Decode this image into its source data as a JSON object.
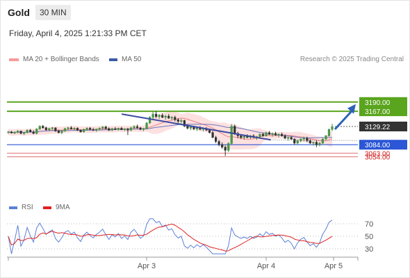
{
  "header": {
    "title": "Gold",
    "timeframe": "30 MIN",
    "datetime": "Friday, April 4, 2025 1:21:33 PM CET"
  },
  "legend": {
    "ma20_label": "MA 20 + Bollinger Bands",
    "ma50_label": "MA 50",
    "credit": "Research © 2025 Trading Central"
  },
  "rsi_legend": {
    "rsi_label": "RSI",
    "ma_label": "9MA"
  },
  "colors": {
    "up_candle": "#555555",
    "ma20": "#f08080",
    "bollinger_fill": "#fde0e0",
    "ma50": "#6a79c0",
    "trendline": "#3b4aa0",
    "resistance": "#5aa51e",
    "current_price": "#333333",
    "support_blue": "#2b56d6",
    "support_red": "#e07070",
    "arrow": "#2e62b8",
    "rsi": "#5b80d6",
    "rsi_ma": "#e02020"
  },
  "chart_data": {
    "type": "candlestick",
    "symbol": "Gold",
    "interval": "30 MIN",
    "x_labels": [
      "Apr 3",
      "Apr 4",
      "Apr 5"
    ],
    "price_range": [
      3045,
      3200
    ],
    "current_price": {
      "value": 3129.22,
      "label": "3129.22"
    },
    "levels": [
      {
        "value": 3190.0,
        "label": "3190.00",
        "kind": "resistance"
      },
      {
        "value": 3167.0,
        "label": "3167.00",
        "kind": "resistance"
      },
      {
        "value": 3084.0,
        "label": "3084.00",
        "kind": "support"
      },
      {
        "value": 3063.0,
        "label": "3063.00",
        "kind": "support-minor"
      },
      {
        "value": 3054.0,
        "label": "3054.00",
        "kind": "support-minor"
      }
    ],
    "candles_ohlc": [
      [
        3114,
        3118,
        3111,
        3116
      ],
      [
        3116,
        3118,
        3112,
        3113
      ],
      [
        3113,
        3117,
        3110,
        3115
      ],
      [
        3115,
        3120,
        3112,
        3118
      ],
      [
        3118,
        3119,
        3110,
        3112
      ],
      [
        3112,
        3116,
        3108,
        3114
      ],
      [
        3114,
        3122,
        3112,
        3120
      ],
      [
        3120,
        3123,
        3114,
        3116
      ],
      [
        3116,
        3120,
        3110,
        3112
      ],
      [
        3112,
        3125,
        3110,
        3123
      ],
      [
        3123,
        3132,
        3121,
        3130
      ],
      [
        3130,
        3133,
        3124,
        3126
      ],
      [
        3126,
        3129,
        3118,
        3121
      ],
      [
        3121,
        3126,
        3118,
        3124
      ],
      [
        3124,
        3128,
        3120,
        3126
      ],
      [
        3126,
        3127,
        3116,
        3118
      ],
      [
        3118,
        3121,
        3112,
        3114
      ],
      [
        3114,
        3120,
        3110,
        3118
      ],
      [
        3118,
        3126,
        3116,
        3124
      ],
      [
        3124,
        3128,
        3120,
        3126
      ],
      [
        3126,
        3130,
        3122,
        3123
      ],
      [
        3123,
        3127,
        3120,
        3125
      ],
      [
        3125,
        3127,
        3118,
        3120
      ],
      [
        3120,
        3122,
        3114,
        3116
      ],
      [
        3116,
        3124,
        3114,
        3122
      ],
      [
        3122,
        3127,
        3119,
        3125
      ],
      [
        3125,
        3128,
        3120,
        3122
      ],
      [
        3122,
        3126,
        3118,
        3120
      ],
      [
        3120,
        3124,
        3116,
        3123
      ],
      [
        3123,
        3127,
        3120,
        3125
      ],
      [
        3125,
        3130,
        3122,
        3128
      ],
      [
        3128,
        3131,
        3122,
        3124
      ],
      [
        3124,
        3127,
        3118,
        3120
      ],
      [
        3120,
        3126,
        3118,
        3124
      ],
      [
        3124,
        3128,
        3120,
        3122
      ],
      [
        3122,
        3126,
        3119,
        3125
      ],
      [
        3125,
        3128,
        3120,
        3121
      ],
      [
        3121,
        3125,
        3118,
        3123
      ],
      [
        3123,
        3126,
        3108,
        3120
      ],
      [
        3120,
        3128,
        3118,
        3126
      ],
      [
        3126,
        3132,
        3122,
        3129
      ],
      [
        3129,
        3134,
        3124,
        3126
      ],
      [
        3126,
        3128,
        3120,
        3122
      ],
      [
        3122,
        3126,
        3118,
        3124
      ],
      [
        3124,
        3140,
        3122,
        3138
      ],
      [
        3138,
        3155,
        3136,
        3152
      ],
      [
        3152,
        3166,
        3148,
        3160
      ],
      [
        3160,
        3168,
        3150,
        3154
      ],
      [
        3154,
        3160,
        3148,
        3157
      ],
      [
        3157,
        3162,
        3150,
        3152
      ],
      [
        3152,
        3158,
        3146,
        3155
      ],
      [
        3155,
        3160,
        3148,
        3150
      ],
      [
        3150,
        3155,
        3144,
        3152
      ],
      [
        3152,
        3156,
        3142,
        3146
      ],
      [
        3146,
        3150,
        3138,
        3142
      ],
      [
        3142,
        3148,
        3136,
        3144
      ],
      [
        3144,
        3146,
        3128,
        3130
      ],
      [
        3130,
        3134,
        3122,
        3125
      ],
      [
        3125,
        3132,
        3120,
        3128
      ],
      [
        3128,
        3131,
        3120,
        3123
      ],
      [
        3123,
        3128,
        3118,
        3126
      ],
      [
        3126,
        3130,
        3120,
        3122
      ],
      [
        3122,
        3127,
        3117,
        3124
      ],
      [
        3124,
        3128,
        3118,
        3120
      ],
      [
        3120,
        3124,
        3112,
        3114
      ],
      [
        3114,
        3118,
        3100,
        3102
      ],
      [
        3102,
        3106,
        3088,
        3092
      ],
      [
        3092,
        3096,
        3080,
        3084
      ],
      [
        3084,
        3090,
        3074,
        3078
      ],
      [
        3078,
        3082,
        3056,
        3070
      ],
      [
        3070,
        3090,
        3066,
        3087
      ],
      [
        3087,
        3135,
        3085,
        3130
      ],
      [
        3130,
        3134,
        3108,
        3112
      ],
      [
        3112,
        3116,
        3100,
        3106
      ],
      [
        3106,
        3110,
        3098,
        3102
      ],
      [
        3102,
        3108,
        3096,
        3105
      ],
      [
        3105,
        3110,
        3100,
        3102
      ],
      [
        3102,
        3108,
        3098,
        3106
      ],
      [
        3106,
        3110,
        3100,
        3102
      ],
      [
        3102,
        3106,
        3096,
        3104
      ],
      [
        3104,
        3112,
        3100,
        3110
      ],
      [
        3110,
        3114,
        3104,
        3106
      ],
      [
        3106,
        3116,
        3104,
        3114
      ],
      [
        3114,
        3118,
        3108,
        3110
      ],
      [
        3110,
        3114,
        3104,
        3112
      ],
      [
        3112,
        3116,
        3106,
        3108
      ],
      [
        3108,
        3112,
        3102,
        3110
      ],
      [
        3110,
        3114,
        3104,
        3106
      ],
      [
        3106,
        3110,
        3098,
        3100
      ],
      [
        3100,
        3104,
        3094,
        3102
      ],
      [
        3102,
        3106,
        3096,
        3098
      ],
      [
        3098,
        3100,
        3084,
        3088
      ],
      [
        3088,
        3096,
        3084,
        3094
      ],
      [
        3094,
        3100,
        3090,
        3098
      ],
      [
        3098,
        3104,
        3092,
        3100
      ],
      [
        3100,
        3104,
        3090,
        3094
      ],
      [
        3094,
        3098,
        3086,
        3088
      ],
      [
        3088,
        3092,
        3082,
        3090
      ],
      [
        3090,
        3096,
        3078,
        3084
      ],
      [
        3084,
        3090,
        3080,
        3088
      ],
      [
        3088,
        3100,
        3086,
        3098
      ],
      [
        3098,
        3108,
        3096,
        3106
      ],
      [
        3106,
        3124,
        3104,
        3122
      ],
      [
        3122,
        3136,
        3118,
        3129
      ]
    ],
    "trendline": {
      "from": [
        0.35,
        3160
      ],
      "to": [
        0.81,
        3096
      ]
    },
    "rsi": {
      "label": "RSI",
      "ma_label": "9MA",
      "levels": [
        70,
        50,
        30
      ],
      "range": [
        20,
        80
      ]
    }
  }
}
